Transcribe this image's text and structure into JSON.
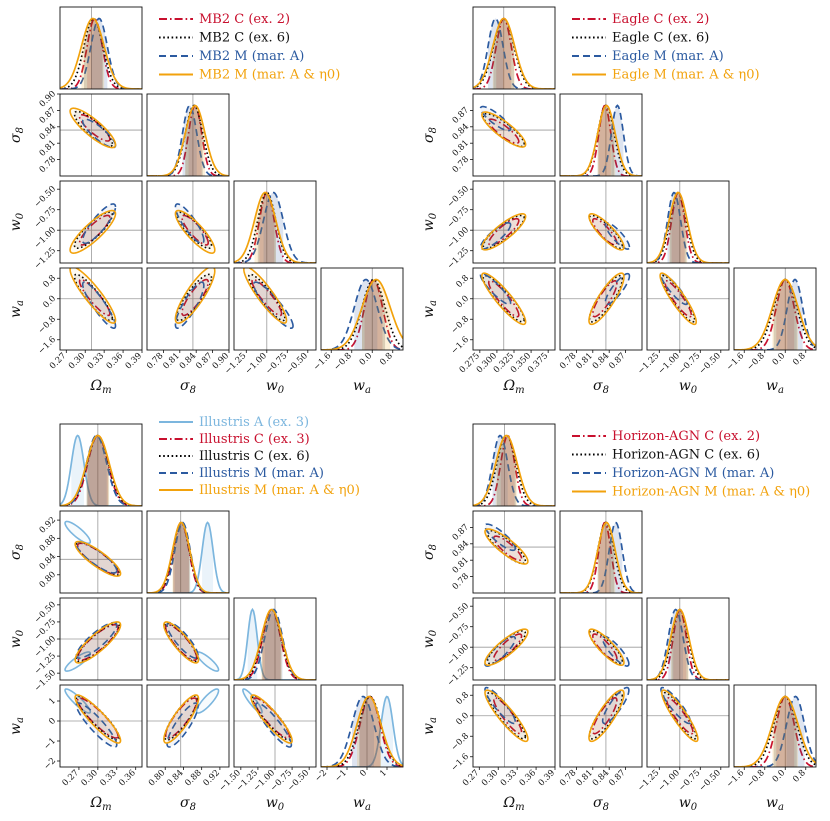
{
  "chart_data": [
    {
      "type": "scatter",
      "subtype": "corner-plot",
      "title": "",
      "params": [
        "Ωm",
        "σ8",
        "w0",
        "wa"
      ],
      "axis_labels": [
        "Ω_m",
        "σ_8",
        "w_0",
        "w_a"
      ],
      "ranges": [
        [
          0.26,
          0.39
        ],
        [
          0.75,
          0.9
        ],
        [
          -1.4,
          -0.4
        ],
        [
          -2.0,
          1.2
        ]
      ],
      "ticks": [
        [
          "0.27",
          "0.30",
          "0.33",
          "0.36",
          "0.39"
        ],
        [
          "0.78",
          "0.81",
          "0.84",
          "0.87",
          "0.90"
        ],
        [
          "−1.25",
          "−1.00",
          "−0.75",
          "−0.50"
        ],
        [
          "−1.6",
          "−0.8",
          "0.0",
          "0.8"
        ]
      ],
      "truth": [
        0.31,
        0.834,
        -1.0,
        0.0
      ],
      "legend": [
        {
          "label": "MB2  C (ex. 2)",
          "color": "#c8102e",
          "dash": "dashdot",
          "mean": [
            0.315,
            0.838,
            -1.0,
            0.05
          ],
          "sd": [
            0.012,
            0.012,
            0.09,
            0.35
          ],
          "rho": [
            -0.85,
            0.85,
            -0.9
          ]
        },
        {
          "label": "MB2  C (ex. 6)",
          "color": "#000000",
          "dash": "dotted",
          "mean": [
            0.313,
            0.836,
            -1.0,
            0.05
          ],
          "sd": [
            0.015,
            0.016,
            0.11,
            0.45
          ],
          "rho": [
            -0.85,
            0.85,
            -0.9
          ]
        },
        {
          "label": "MB2  M (mar. A)",
          "color": "#2b5aa0",
          "dash": "dashed",
          "mean": [
            0.322,
            0.828,
            -0.92,
            -0.25
          ],
          "sd": [
            0.013,
            0.013,
            0.12,
            0.45
          ],
          "rho": [
            -0.85,
            0.85,
            -0.9
          ]
        },
        {
          "label": "MB2  M (mar. A & η0)",
          "color": "#f2a20c",
          "dash": "solid",
          "mean": [
            0.312,
            0.838,
            -1.02,
            0.15
          ],
          "sd": [
            0.018,
            0.018,
            0.13,
            0.55
          ],
          "rho": [
            -0.85,
            0.85,
            -0.9
          ]
        }
      ]
    },
    {
      "type": "scatter",
      "subtype": "corner-plot",
      "title": "",
      "params": [
        "Ωm",
        "σ8",
        "w0",
        "wa"
      ],
      "axis_labels": [
        "Ω_m",
        "σ_8",
        "w_0",
        "w_a"
      ],
      "ranges": [
        [
          0.265,
          0.385
        ],
        [
          0.75,
          0.9
        ],
        [
          -1.4,
          -0.4
        ],
        [
          -2.0,
          1.2
        ]
      ],
      "ticks": [
        [
          "0.275",
          "0.300",
          "0.325",
          "0.350",
          "0.375"
        ],
        [
          "0.78",
          "0.81",
          "0.84",
          "0.87"
        ],
        [
          "−1.25",
          "−1.00",
          "−0.75",
          "−0.50"
        ],
        [
          "−1.6",
          "−0.8",
          "0.0",
          "0.8"
        ]
      ],
      "truth": [
        0.31,
        0.834,
        -1.0,
        0.0
      ],
      "legend": [
        {
          "label": "Eagle  C (ex. 2)",
          "color": "#c8102e",
          "dash": "dashdot",
          "mean": [
            0.31,
            0.832,
            -1.02,
            0.0
          ],
          "sd": [
            0.011,
            0.011,
            0.08,
            0.35
          ],
          "rho": [
            -0.85,
            0.85,
            -0.9
          ]
        },
        {
          "label": "Eagle  C (ex. 6)",
          "color": "#000000",
          "dash": "dotted",
          "mean": [
            0.31,
            0.834,
            -1.02,
            0.0
          ],
          "sd": [
            0.015,
            0.015,
            0.1,
            0.45
          ],
          "rho": [
            -0.85,
            0.85,
            -0.9
          ]
        },
        {
          "label": "Eagle  M (mar. A)",
          "color": "#2b5aa0",
          "dash": "dashed",
          "mean": [
            0.298,
            0.855,
            -1.07,
            0.38
          ],
          "sd": [
            0.011,
            0.011,
            0.08,
            0.3
          ],
          "rho": [
            -0.85,
            0.85,
            -0.9
          ]
        },
        {
          "label": "Eagle  M (mar. A & η0)",
          "color": "#f2a20c",
          "dash": "solid",
          "mean": [
            0.31,
            0.835,
            -1.02,
            0.0
          ],
          "sd": [
            0.016,
            0.016,
            0.11,
            0.5
          ],
          "rho": [
            -0.85,
            0.85,
            -0.9
          ]
        }
      ]
    },
    {
      "type": "scatter",
      "subtype": "corner-plot",
      "title": "",
      "params": [
        "Ωm",
        "σ8",
        "w0",
        "wa"
      ],
      "axis_labels": [
        "Ω_m",
        "σ_8",
        "w_0",
        "w_a"
      ],
      "ranges": [
        [
          0.24,
          0.37
        ],
        [
          0.76,
          0.94
        ],
        [
          -1.6,
          -0.4
        ],
        [
          -2.3,
          1.8
        ]
      ],
      "ticks": [
        [
          "0.27",
          "0.30",
          "0.33",
          "0.36"
        ],
        [
          "0.80",
          "0.84",
          "0.88",
          "0.92"
        ],
        [
          "−1.50",
          "−1.25",
          "−1.00",
          "−0.75",
          "−0.50"
        ],
        [
          "−2",
          "−1",
          "0",
          "1"
        ]
      ],
      "axis_ticks_x": [
        [
          "0.27",
          "0.30",
          "0.33",
          "0.36"
        ],
        [
          "0.80",
          "0.84",
          "0.88",
          "0.92"
        ],
        [
          "−1.50",
          "−1.25",
          "−1.00",
          "−0.75",
          "−0.50"
        ],
        [
          "−2",
          "−1",
          "0",
          "1",
          "2"
        ]
      ],
      "truth": [
        0.3,
        0.834,
        -1.0,
        0.0
      ],
      "legend": [
        {
          "label": "Illustris  A (ex. 3)",
          "color": "#7cb6de",
          "dash": "solid",
          "mean": [
            0.268,
            0.893,
            -1.33,
            1.0
          ],
          "sd": [
            0.01,
            0.012,
            0.07,
            0.3
          ],
          "rho": [
            -0.85,
            0.85,
            -0.9
          ]
        },
        {
          "label": "Illustris  C (ex. 3)",
          "color": "#c8102e",
          "dash": "dashdot",
          "mean": [
            0.3,
            0.835,
            -1.05,
            0.15
          ],
          "sd": [
            0.016,
            0.017,
            0.13,
            0.5
          ],
          "rho": [
            -0.85,
            0.85,
            -0.9
          ]
        },
        {
          "label": "Illustris  C (ex. 6)",
          "color": "#000000",
          "dash": "dotted",
          "mean": [
            0.3,
            0.835,
            -1.05,
            0.15
          ],
          "sd": [
            0.017,
            0.018,
            0.14,
            0.55
          ],
          "rho": [
            -0.85,
            0.85,
            -0.9
          ]
        },
        {
          "label": "Illustris  M (mar. A)",
          "color": "#2b5aa0",
          "dash": "dashed",
          "mean": [
            0.298,
            0.838,
            -1.02,
            -0.2
          ],
          "sd": [
            0.016,
            0.017,
            0.13,
            0.55
          ],
          "rho": [
            -0.85,
            0.85,
            -0.9
          ]
        },
        {
          "label": "Illustris  M (mar. A & η0)",
          "color": "#f2a20c",
          "dash": "solid",
          "mean": [
            0.3,
            0.835,
            -1.05,
            0.1
          ],
          "sd": [
            0.018,
            0.019,
            0.15,
            0.6
          ],
          "rho": [
            -0.85,
            0.85,
            -0.9
          ]
        }
      ]
    },
    {
      "type": "scatter",
      "subtype": "corner-plot",
      "title": "",
      "params": [
        "Ωm",
        "σ8",
        "w0",
        "wa"
      ],
      "axis_labels": [
        "Ω_m",
        "σ_8",
        "w_0",
        "w_a"
      ],
      "ranges": [
        [
          0.26,
          0.39
        ],
        [
          0.75,
          0.9
        ],
        [
          -1.4,
          -0.4
        ],
        [
          -2.0,
          1.2
        ]
      ],
      "ticks": [
        [
          "0.27",
          "0.30",
          "0.33",
          "0.36",
          "0.39"
        ],
        [
          "0.78",
          "0.81",
          "0.84",
          "0.87"
        ],
        [
          "−1.25",
          "−1.00",
          "−0.75",
          "−0.50"
        ],
        [
          "−1.6",
          "−0.8",
          "0.0",
          "0.8"
        ]
      ],
      "truth": [
        0.31,
        0.834,
        -1.0,
        0.0
      ],
      "legend": [
        {
          "label": "Horizon-AGN C (ex. 2)",
          "color": "#c8102e",
          "dash": "dashdot",
          "mean": [
            0.315,
            0.832,
            -1.0,
            0.0
          ],
          "sd": [
            0.011,
            0.011,
            0.08,
            0.35
          ],
          "rho": [
            -0.85,
            0.85,
            -0.9
          ]
        },
        {
          "label": "Horizon-AGN C (ex. 6)",
          "color": "#000000",
          "dash": "dotted",
          "mean": [
            0.313,
            0.834,
            -1.0,
            0.0
          ],
          "sd": [
            0.015,
            0.015,
            0.1,
            0.45
          ],
          "rho": [
            -0.85,
            0.85,
            -0.9
          ]
        },
        {
          "label": "Horizon-AGN M (mar. A)",
          "color": "#2b5aa0",
          "dash": "dashed",
          "mean": [
            0.303,
            0.852,
            -1.05,
            0.4
          ],
          "sd": [
            0.012,
            0.012,
            0.09,
            0.35
          ],
          "rho": [
            -0.85,
            0.85,
            -0.9
          ]
        },
        {
          "label": "Horizon-AGN M (mar. A & η0)",
          "color": "#f2a20c",
          "dash": "solid",
          "mean": [
            0.313,
            0.835,
            -1.0,
            0.0
          ],
          "sd": [
            0.017,
            0.016,
            0.11,
            0.5
          ],
          "rho": [
            -0.85,
            0.85,
            -0.9
          ]
        }
      ]
    }
  ]
}
